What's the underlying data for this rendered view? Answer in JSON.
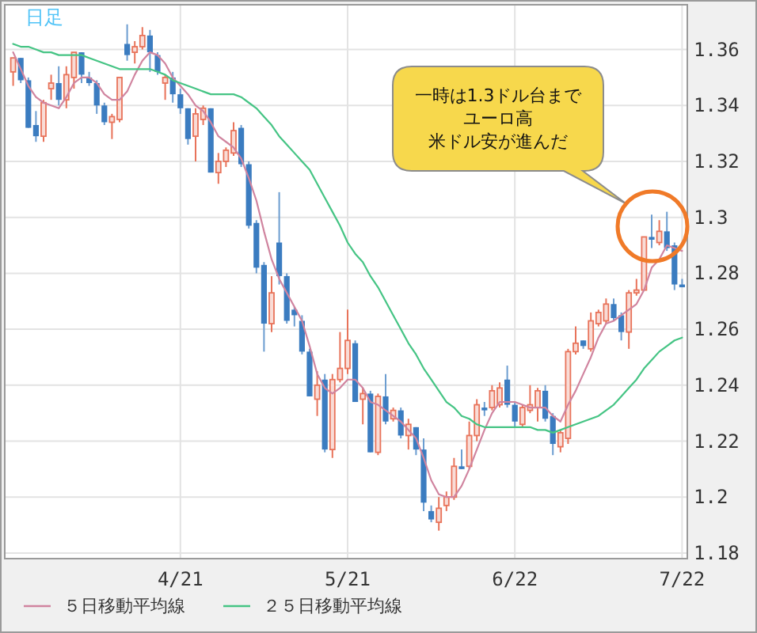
{
  "chart_data": {
    "type": "candlestick",
    "title": "日足",
    "categories": [
      null,
      null,
      null,
      null,
      null,
      null,
      null,
      null,
      null,
      null,
      null,
      null,
      null,
      null,
      null,
      null,
      null,
      null,
      null,
      null,
      null,
      null,
      "4/21",
      null,
      null,
      null,
      null,
      null,
      null,
      null,
      null,
      null,
      null,
      null,
      null,
      null,
      null,
      null,
      null,
      null,
      null,
      null,
      null,
      null,
      "5/21",
      null,
      null,
      null,
      null,
      null,
      null,
      null,
      null,
      null,
      null,
      null,
      null,
      null,
      null,
      null,
      null,
      null,
      null,
      null,
      null,
      null,
      "6/22",
      null,
      null,
      null,
      null,
      null,
      null,
      null,
      null,
      null,
      null,
      null,
      null,
      null,
      null,
      null,
      null,
      null,
      null,
      null,
      null,
      null,
      "7/22"
    ],
    "ohlc": [
      [
        1.352,
        1.357,
        1.347,
        1.357
      ],
      [
        1.357,
        1.357,
        1.348,
        1.349
      ],
      [
        1.349,
        1.35,
        1.332,
        1.332
      ],
      [
        1.333,
        1.338,
        1.327,
        1.329
      ],
      [
        1.329,
        1.342,
        1.327,
        1.341
      ],
      [
        1.346,
        1.351,
        1.342,
        1.348
      ],
      [
        1.348,
        1.354,
        1.34,
        1.342
      ],
      [
        1.342,
        1.354,
        1.339,
        1.351
      ],
      [
        1.35,
        1.359,
        1.346,
        1.359
      ],
      [
        1.359,
        1.359,
        1.348,
        1.351
      ],
      [
        1.35,
        1.352,
        1.347,
        1.348
      ],
      [
        1.348,
        1.349,
        1.337,
        1.34
      ],
      [
        1.34,
        1.341,
        1.333,
        1.334
      ],
      [
        1.334,
        1.337,
        1.328,
        1.336
      ],
      [
        1.335,
        1.35,
        1.334,
        1.35
      ],
      [
        1.362,
        1.369,
        1.356,
        1.358
      ],
      [
        1.359,
        1.363,
        1.355,
        1.361
      ],
      [
        1.361,
        1.368,
        1.36,
        1.365
      ],
      [
        1.365,
        1.367,
        1.352,
        1.359
      ],
      [
        1.358,
        1.359,
        1.351,
        1.352
      ],
      [
        1.348,
        1.351,
        1.342,
        1.35
      ],
      [
        1.35,
        1.352,
        1.341,
        1.344
      ],
      [
        1.344,
        1.346,
        1.337,
        1.339
      ],
      [
        1.339,
        1.339,
        1.326,
        1.328
      ],
      [
        1.329,
        1.339,
        1.32,
        1.337
      ],
      [
        1.335,
        1.34,
        1.333,
        1.339
      ],
      [
        1.339,
        1.339,
        1.316,
        1.316
      ],
      [
        1.316,
        1.323,
        1.312,
        1.32
      ],
      [
        1.32,
        1.325,
        1.318,
        1.324
      ],
      [
        1.323,
        1.334,
        1.322,
        1.331
      ],
      [
        1.332,
        1.333,
        1.318,
        1.319
      ],
      [
        1.319,
        1.32,
        1.296,
        1.297
      ],
      [
        1.298,
        1.299,
        1.28,
        1.282
      ],
      [
        1.283,
        1.284,
        1.252,
        1.262
      ],
      [
        1.262,
        1.279,
        1.259,
        1.273
      ],
      [
        1.291,
        1.309,
        1.276,
        1.279
      ],
      [
        1.279,
        1.28,
        1.262,
        1.263
      ],
      [
        1.267,
        1.268,
        1.261,
        1.265
      ],
      [
        1.263,
        1.265,
        1.251,
        1.252
      ],
      [
        1.252,
        1.253,
        1.236,
        1.236
      ],
      [
        1.235,
        1.245,
        1.229,
        1.24
      ],
      [
        1.242,
        1.244,
        1.216,
        1.217
      ],
      [
        1.217,
        1.244,
        1.214,
        1.242
      ],
      [
        1.242,
        1.259,
        1.241,
        1.246
      ],
      [
        1.246,
        1.267,
        1.244,
        1.256
      ],
      [
        1.255,
        1.256,
        1.234,
        1.234
      ],
      [
        1.235,
        1.239,
        1.226,
        1.237
      ],
      [
        1.237,
        1.238,
        1.216,
        1.216
      ],
      [
        1.216,
        1.237,
        1.215,
        1.236
      ],
      [
        1.236,
        1.244,
        1.226,
        1.227
      ],
      [
        1.228,
        1.232,
        1.227,
        1.231
      ],
      [
        1.231,
        1.232,
        1.221,
        1.222
      ],
      [
        1.222,
        1.228,
        1.217,
        1.226
      ],
      [
        1.225,
        1.225,
        1.215,
        1.217
      ],
      [
        1.217,
        1.221,
        1.195,
        1.198
      ],
      [
        1.195,
        1.197,
        1.191,
        1.192
      ],
      [
        1.191,
        1.2,
        1.188,
        1.196
      ],
      [
        1.197,
        1.202,
        1.195,
        1.2
      ],
      [
        1.2,
        1.214,
        1.199,
        1.211
      ],
      [
        1.211,
        1.217,
        1.21,
        1.21
      ],
      [
        1.211,
        1.227,
        1.21,
        1.222
      ],
      [
        1.222,
        1.235,
        1.22,
        1.233
      ],
      [
        1.232,
        1.234,
        1.229,
        1.231
      ],
      [
        1.232,
        1.24,
        1.231,
        1.238
      ],
      [
        1.233,
        1.241,
        1.232,
        1.239
      ],
      [
        1.242,
        1.247,
        1.232,
        1.233
      ],
      [
        1.233,
        1.234,
        1.225,
        1.227
      ],
      [
        1.226,
        1.233,
        1.225,
        1.232
      ],
      [
        1.231,
        1.24,
        1.23,
        1.233
      ],
      [
        1.232,
        1.239,
        1.227,
        1.238
      ],
      [
        1.238,
        1.24,
        1.227,
        1.228
      ],
      [
        1.229,
        1.23,
        1.215,
        1.219
      ],
      [
        1.218,
        1.224,
        1.216,
        1.223
      ],
      [
        1.221,
        1.253,
        1.219,
        1.252
      ],
      [
        1.252,
        1.261,
        1.251,
        1.255
      ],
      [
        1.256,
        1.256,
        1.253,
        1.254
      ],
      [
        1.253,
        1.266,
        1.252,
        1.263
      ],
      [
        1.262,
        1.267,
        1.261,
        1.266
      ],
      [
        1.263,
        1.271,
        1.262,
        1.269
      ],
      [
        1.269,
        1.271,
        1.263,
        1.264
      ],
      [
        1.265,
        1.266,
        1.256,
        1.259
      ],
      [
        1.259,
        1.274,
        1.253,
        1.273
      ],
      [
        1.273,
        1.278,
        1.272,
        1.274
      ],
      [
        1.274,
        1.293,
        1.274,
        1.293
      ],
      [
        1.293,
        1.301,
        1.289,
        1.292
      ],
      [
        1.291,
        1.299,
        1.29,
        1.295
      ],
      [
        1.295,
        1.302,
        1.288,
        1.289
      ],
      [
        1.29,
        1.291,
        1.274,
        1.276
      ],
      [
        1.276,
        1.278,
        1.275,
        1.275
      ]
    ],
    "colors": [
      "#e8735a",
      "#3b7cc0",
      "#3b7cc0",
      "#3b7cc0",
      "#e8735a",
      "#e8735a",
      "#3b7cc0",
      "#e8735a",
      "#e8735a",
      "#3b7cc0",
      "#3b7cc0",
      "#3b7cc0",
      "#3b7cc0",
      "#e8735a",
      "#e8735a",
      "#3b7cc0",
      "#e8735a",
      "#e8735a",
      "#3b7cc0",
      "#3b7cc0",
      "#e8735a",
      "#3b7cc0",
      "#3b7cc0",
      "#3b7cc0",
      "#e8735a",
      "#e8735a",
      "#3b7cc0",
      "#e8735a",
      "#e8735a",
      "#e8735a",
      "#3b7cc0",
      "#3b7cc0",
      "#3b7cc0",
      "#3b7cc0",
      "#e8735a",
      "#3b7cc0",
      "#3b7cc0",
      "#3b7cc0",
      "#3b7cc0",
      "#3b7cc0",
      "#e8735a",
      "#3b7cc0",
      "#e8735a",
      "#e8735a",
      "#e8735a",
      "#3b7cc0",
      "#e8735a",
      "#3b7cc0",
      "#e8735a",
      "#3b7cc0",
      "#e8735a",
      "#3b7cc0",
      "#e8735a",
      "#3b7cc0",
      "#3b7cc0",
      "#3b7cc0",
      "#e8735a",
      "#e8735a",
      "#e8735a",
      "#3b7cc0",
      "#e8735a",
      "#e8735a",
      "#3b7cc0",
      "#e8735a",
      "#e8735a",
      "#3b7cc0",
      "#3b7cc0",
      "#e8735a",
      "#e8735a",
      "#e8735a",
      "#3b7cc0",
      "#3b7cc0",
      "#e8735a",
      "#e8735a",
      "#e8735a",
      "#3b7cc0",
      "#e8735a",
      "#e8735a",
      "#e8735a",
      "#3b7cc0",
      "#3b7cc0",
      "#e8735a",
      "#e8735a",
      "#e8735a",
      "#3b7cc0",
      "#e8735a",
      "#3b7cc0",
      "#3b7cc0",
      "#3b7cc0"
    ],
    "series": [
      {
        "name": "５日移動平均線",
        "type": "line",
        "color": "#d0849f",
        "values": [
          1.359,
          1.353,
          1.347,
          1.343,
          1.341,
          1.34,
          1.339,
          1.343,
          1.348,
          1.35,
          1.35,
          1.348,
          1.344,
          1.342,
          1.342,
          1.345,
          1.351,
          1.356,
          1.359,
          1.358,
          1.355,
          1.35,
          1.347,
          1.344,
          1.34,
          1.338,
          1.334,
          1.329,
          1.327,
          1.325,
          1.321,
          1.314,
          1.306,
          1.295,
          1.285,
          1.278,
          1.273,
          1.268,
          1.263,
          1.254,
          1.244,
          1.239,
          1.237,
          1.239,
          1.242,
          1.242,
          1.239,
          1.234,
          1.233,
          1.231,
          1.229,
          1.227,
          1.224,
          1.221,
          1.214,
          1.206,
          1.201,
          1.2,
          1.2,
          1.204,
          1.21,
          1.217,
          1.224,
          1.23,
          1.234,
          1.234,
          1.234,
          1.233,
          1.232,
          1.232,
          1.232,
          1.229,
          1.227,
          1.233,
          1.238,
          1.244,
          1.25,
          1.257,
          1.262,
          1.263,
          1.265,
          1.267,
          1.269,
          1.274,
          1.282,
          1.285,
          1.29,
          1.289,
          1.288
        ]
      },
      {
        "name": "２５日移動平均線",
        "type": "line",
        "color": "#45c484",
        "values": [
          1.362,
          1.361,
          1.361,
          1.36,
          1.359,
          1.359,
          1.358,
          1.358,
          1.358,
          1.358,
          1.357,
          1.356,
          1.355,
          1.354,
          1.353,
          1.353,
          1.353,
          1.353,
          1.353,
          1.352,
          1.351,
          1.349,
          1.348,
          1.347,
          1.346,
          1.345,
          1.344,
          1.344,
          1.344,
          1.344,
          1.343,
          1.341,
          1.339,
          1.336,
          1.333,
          1.329,
          1.326,
          1.323,
          1.32,
          1.317,
          1.312,
          1.307,
          1.302,
          1.297,
          1.291,
          1.287,
          1.284,
          1.279,
          1.275,
          1.27,
          1.265,
          1.26,
          1.255,
          1.251,
          1.246,
          1.242,
          1.238,
          1.234,
          1.232,
          1.229,
          1.228,
          1.226,
          1.225,
          1.225,
          1.225,
          1.225,
          1.225,
          1.225,
          1.225,
          1.224,
          1.224,
          1.223,
          1.224,
          1.225,
          1.226,
          1.227,
          1.228,
          1.229,
          1.231,
          1.233,
          1.236,
          1.239,
          1.242,
          1.246,
          1.249,
          1.252,
          1.254,
          1.256,
          1.257
        ]
      }
    ],
    "ylim": [
      1.178,
      1.376
    ],
    "yticks": [
      1.18,
      1.2,
      1.22,
      1.24,
      1.26,
      1.28,
      1.3,
      1.32,
      1.34,
      1.36
    ],
    "grid": true,
    "legend": "bottom",
    "annotations": [
      "一時は1.3ドル台まで",
      "ユーロ高",
      "米ドル安が進んだ"
    ]
  }
}
